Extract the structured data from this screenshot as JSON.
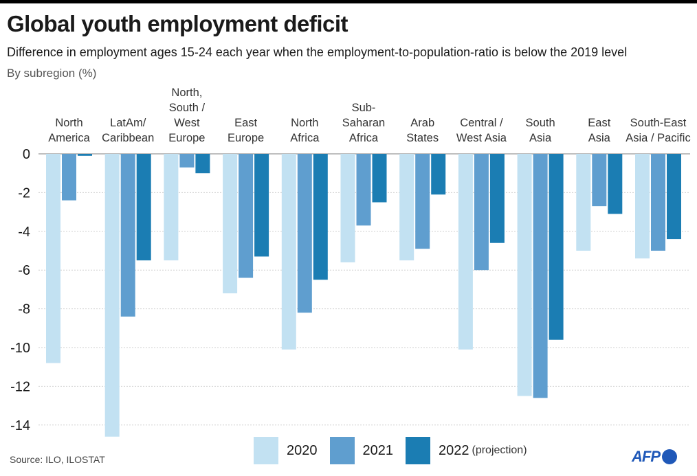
{
  "title": "Global youth employment deficit",
  "subtitle": "Difference in employment ages 15-24 each year when the employment-to-population-ratio is below the 2019 level",
  "unit_note": "By subregion (%)",
  "source": "Source: ILO, ILOSTAT",
  "logo": "AFP",
  "colors": {
    "2020": "#c2e1f2",
    "2021": "#5f9ecf",
    "2022": "#1b7db3"
  },
  "legend": [
    {
      "label": "2020",
      "note": ""
    },
    {
      "label": "2021",
      "note": ""
    },
    {
      "label": "2022",
      "note": "(projection)"
    }
  ],
  "chart_data": {
    "type": "bar",
    "ylim": [
      -14.6,
      0
    ],
    "yticks": [
      0,
      -2,
      -4,
      -6,
      -8,
      -10,
      -12,
      -14
    ],
    "grid": true,
    "categories": [
      [
        "North",
        "America"
      ],
      [
        "LatAm/",
        "Caribbean"
      ],
      [
        "North,",
        "South /",
        "West",
        "Europe"
      ],
      [
        "East",
        "Europe"
      ],
      [
        "North",
        "Africa"
      ],
      [
        "Sub-",
        "Saharan",
        "Africa"
      ],
      [
        "Arab",
        "States"
      ],
      [
        "Central /",
        "West Asia"
      ],
      [
        "South",
        "Asia"
      ],
      [
        "East",
        "Asia"
      ],
      [
        "South-East",
        "Asia / Pacific"
      ]
    ],
    "series": [
      {
        "name": "2020",
        "values": [
          -10.8,
          -14.6,
          -5.5,
          -7.2,
          -10.1,
          -5.6,
          -5.5,
          -10.1,
          -12.5,
          -5.0,
          -5.4
        ]
      },
      {
        "name": "2021",
        "values": [
          -2.4,
          -8.4,
          -0.7,
          -6.4,
          -8.2,
          -3.7,
          -4.9,
          -6.0,
          -12.6,
          -2.7,
          -5.0
        ]
      },
      {
        "name": "2022",
        "values": [
          -0.1,
          -5.5,
          -1.0,
          -5.3,
          -6.5,
          -2.5,
          -2.1,
          -4.6,
          -9.6,
          -3.1,
          -4.4
        ]
      }
    ]
  }
}
